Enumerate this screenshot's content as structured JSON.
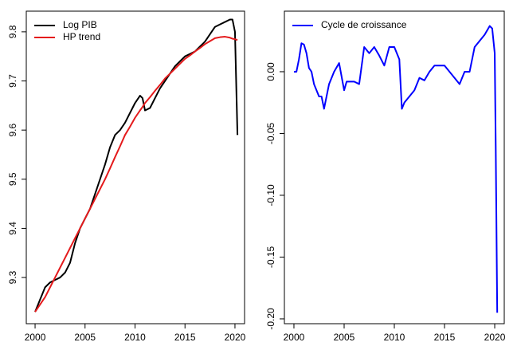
{
  "chart_data": [
    {
      "type": "line",
      "x": [
        2000,
        2000.5,
        2001,
        2001.5,
        2002,
        2002.5,
        2003,
        2003.5,
        2004,
        2004.5,
        2005,
        2005.5,
        2006,
        2006.5,
        2007,
        2007.5,
        2008,
        2008.5,
        2009,
        2009.5,
        2010,
        2010.5,
        2010.75,
        2011,
        2011.5,
        2012,
        2012.5,
        2013,
        2013.5,
        2014,
        2014.5,
        2015,
        2015.5,
        2016,
        2016.5,
        2017,
        2017.5,
        2018,
        2018.5,
        2019,
        2019.5,
        2019.75,
        2020,
        2020.25
      ],
      "series": [
        {
          "name": "Log PIB",
          "color": "#000000",
          "values": [
            9.23,
            9.255,
            9.28,
            9.29,
            9.295,
            9.3,
            9.31,
            9.33,
            9.37,
            9.4,
            9.42,
            9.44,
            9.47,
            9.5,
            9.53,
            9.565,
            9.59,
            9.6,
            9.615,
            9.635,
            9.655,
            9.67,
            9.665,
            9.64,
            9.645,
            9.665,
            9.685,
            9.7,
            9.715,
            9.73,
            9.74,
            9.75,
            9.755,
            9.76,
            9.77,
            9.78,
            9.795,
            9.81,
            9.815,
            9.82,
            9.825,
            9.825,
            9.8,
            9.59
          ]
        },
        {
          "name": "HP trend",
          "color": "#e41a1c",
          "values": [
            9.23,
            9.245,
            9.26,
            9.28,
            9.3,
            9.32,
            9.34,
            9.36,
            9.38,
            9.4,
            9.42,
            9.44,
            9.46,
            9.48,
            9.5,
            9.522,
            9.545,
            9.567,
            9.59,
            9.607,
            9.625,
            9.64,
            9.647,
            9.655,
            9.667,
            9.68,
            9.692,
            9.705,
            9.715,
            9.725,
            9.735,
            9.745,
            9.752,
            9.76,
            9.767,
            9.775,
            9.781,
            9.787,
            9.789,
            9.79,
            9.788,
            9.786,
            9.785,
            9.783
          ]
        }
      ],
      "xlim": [
        1999.12,
        2020.96
      ],
      "ylim": [
        9.206,
        9.842
      ],
      "xticks": [
        2000,
        2005,
        2010,
        2015,
        2020
      ],
      "yticks": [
        9.3,
        9.4,
        9.5,
        9.6,
        9.7,
        9.8
      ],
      "legend": "topleft"
    },
    {
      "type": "line",
      "x": [
        2000,
        2000.25,
        2000.5,
        2000.75,
        2001,
        2001.25,
        2001.5,
        2001.75,
        2002,
        2002.25,
        2002.5,
        2002.75,
        2003,
        2003.25,
        2003.5,
        2003.75,
        2004,
        2004.5,
        2005,
        2005.25,
        2006,
        2006.5,
        2007,
        2007.5,
        2008,
        2008.5,
        2009,
        2009.5,
        2010,
        2010.5,
        2010.75,
        2011,
        2011.5,
        2012,
        2012.5,
        2013,
        2013.5,
        2014,
        2015,
        2015.5,
        2016,
        2016.5,
        2017,
        2017.5,
        2018,
        2018.5,
        2019,
        2019.5,
        2019.75,
        2020,
        2020.1,
        2020.25
      ],
      "series": [
        {
          "name": "Cycle de croissance",
          "color": "#0000ff",
          "values": [
            0.0,
            0.0,
            0.01,
            0.023,
            0.022,
            0.015,
            0.003,
            0.0,
            -0.01,
            -0.015,
            -0.02,
            -0.02,
            -0.03,
            -0.02,
            -0.01,
            -0.005,
            0.0,
            0.007,
            -0.015,
            -0.008,
            -0.008,
            -0.01,
            0.02,
            0.015,
            0.02,
            0.013,
            0.005,
            0.02,
            0.02,
            0.01,
            -0.03,
            -0.025,
            -0.02,
            -0.015,
            -0.005,
            -0.007,
            0.0,
            0.005,
            0.005,
            0.0,
            -0.005,
            -0.01,
            0.0,
            0.0,
            0.02,
            0.025,
            0.03,
            0.037,
            0.035,
            0.015,
            -0.06,
            -0.195
          ]
        }
      ],
      "xlim": [
        1999.05,
        2020.95
      ],
      "ylim": [
        -0.2039,
        0.049
      ],
      "xticks": [
        2000,
        2005,
        2010,
        2015,
        2020
      ],
      "yticks": [
        {
          "value": 0,
          "label": "0.00"
        },
        {
          "value": -0.05,
          "label": "-0.05"
        },
        {
          "value": -0.1,
          "label": "-0.10"
        },
        {
          "value": -0.15,
          "label": "-0.15"
        },
        {
          "value": -0.2,
          "label": "-0.20"
        }
      ],
      "legend": "topleft"
    }
  ]
}
